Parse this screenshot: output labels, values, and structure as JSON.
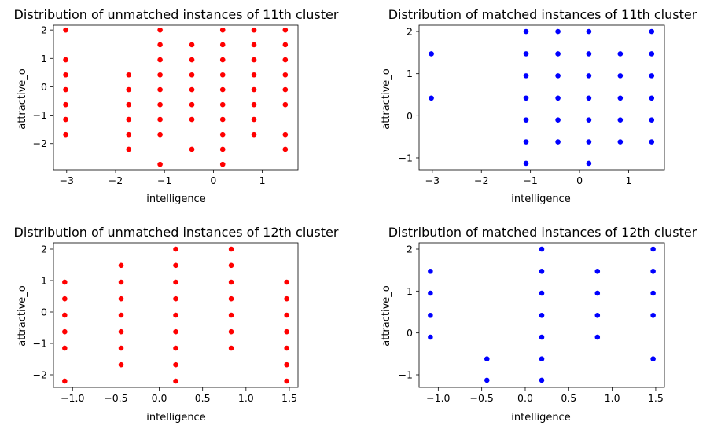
{
  "chart_data": [
    {
      "type": "scatter",
      "title": "Distribution of unmatched instances of 11th cluster",
      "xlabel": "intelligence",
      "ylabel": "attractive_o",
      "xlim": [
        -3.27,
        1.73
      ],
      "ylim": [
        -2.92,
        2.17
      ],
      "xticks": [
        -3,
        -2,
        -1,
        0,
        1
      ],
      "yticks": [
        -2,
        -1,
        0,
        1,
        2
      ],
      "xtick_labels": [
        "−3",
        "−2",
        "−1",
        "0",
        "1"
      ],
      "ytick_labels": [
        "−2",
        "−1",
        "0",
        "1",
        "2"
      ],
      "color": "#ff0000",
      "points": [
        {
          "x": -3.02,
          "y": 2.0
        },
        {
          "x": -3.02,
          "y": 0.95
        },
        {
          "x": -3.02,
          "y": 0.42
        },
        {
          "x": -3.02,
          "y": -0.1
        },
        {
          "x": -3.02,
          "y": -0.63
        },
        {
          "x": -3.02,
          "y": -1.15
        },
        {
          "x": -3.02,
          "y": -1.68
        },
        {
          "x": -1.73,
          "y": 0.42
        },
        {
          "x": -1.73,
          "y": -0.1
        },
        {
          "x": -1.73,
          "y": -0.63
        },
        {
          "x": -1.73,
          "y": -1.15
        },
        {
          "x": -1.73,
          "y": -1.68
        },
        {
          "x": -1.73,
          "y": -2.2
        },
        {
          "x": -1.09,
          "y": 2.0
        },
        {
          "x": -1.09,
          "y": 1.48
        },
        {
          "x": -1.09,
          "y": 0.95
        },
        {
          "x": -1.09,
          "y": 0.42
        },
        {
          "x": -1.09,
          "y": -0.1
        },
        {
          "x": -1.09,
          "y": -0.63
        },
        {
          "x": -1.09,
          "y": -1.15
        },
        {
          "x": -1.09,
          "y": -1.68
        },
        {
          "x": -1.09,
          "y": -2.73
        },
        {
          "x": -0.44,
          "y": 1.48
        },
        {
          "x": -0.44,
          "y": 0.95
        },
        {
          "x": -0.44,
          "y": 0.42
        },
        {
          "x": -0.44,
          "y": -0.1
        },
        {
          "x": -0.44,
          "y": -0.63
        },
        {
          "x": -0.44,
          "y": -1.15
        },
        {
          "x": -0.44,
          "y": -2.2
        },
        {
          "x": 0.19,
          "y": 2.0
        },
        {
          "x": 0.19,
          "y": 1.48
        },
        {
          "x": 0.19,
          "y": 0.95
        },
        {
          "x": 0.19,
          "y": 0.42
        },
        {
          "x": 0.19,
          "y": -0.1
        },
        {
          "x": 0.19,
          "y": -0.63
        },
        {
          "x": 0.19,
          "y": -1.15
        },
        {
          "x": 0.19,
          "y": -1.68
        },
        {
          "x": 0.19,
          "y": -2.2
        },
        {
          "x": 0.19,
          "y": -2.73
        },
        {
          "x": 0.83,
          "y": 2.0
        },
        {
          "x": 0.83,
          "y": 1.48
        },
        {
          "x": 0.83,
          "y": 0.95
        },
        {
          "x": 0.83,
          "y": 0.42
        },
        {
          "x": 0.83,
          "y": -0.1
        },
        {
          "x": 0.83,
          "y": -0.63
        },
        {
          "x": 0.83,
          "y": -1.15
        },
        {
          "x": 0.83,
          "y": -1.68
        },
        {
          "x": 1.47,
          "y": 2.0
        },
        {
          "x": 1.47,
          "y": 1.48
        },
        {
          "x": 1.47,
          "y": 0.95
        },
        {
          "x": 1.47,
          "y": 0.42
        },
        {
          "x": 1.47,
          "y": -0.1
        },
        {
          "x": 1.47,
          "y": -0.63
        },
        {
          "x": 1.47,
          "y": -1.68
        },
        {
          "x": 1.47,
          "y": -2.2
        }
      ]
    },
    {
      "type": "scatter",
      "title": "Distribution of matched instances of 11th cluster",
      "xlabel": "intelligence",
      "ylabel": "attractive_o",
      "xlim": [
        -3.27,
        1.73
      ],
      "ylim": [
        -1.28,
        2.15
      ],
      "xticks": [
        -3,
        -2,
        -1,
        0,
        1
      ],
      "yticks": [
        -1,
        0,
        1,
        2
      ],
      "xtick_labels": [
        "−3",
        "−2",
        "−1",
        "0",
        "1"
      ],
      "ytick_labels": [
        "−1",
        "0",
        "1",
        "2"
      ],
      "color": "#0000ff",
      "points": [
        {
          "x": -3.02,
          "y": 1.47
        },
        {
          "x": -3.02,
          "y": 0.42
        },
        {
          "x": -1.09,
          "y": 2.0
        },
        {
          "x": -1.09,
          "y": 1.47
        },
        {
          "x": -1.09,
          "y": 0.95
        },
        {
          "x": -1.09,
          "y": 0.42
        },
        {
          "x": -1.09,
          "y": -0.1
        },
        {
          "x": -1.09,
          "y": -0.62
        },
        {
          "x": -1.09,
          "y": -1.13
        },
        {
          "x": -0.44,
          "y": 2.0
        },
        {
          "x": -0.44,
          "y": 1.47
        },
        {
          "x": -0.44,
          "y": 0.95
        },
        {
          "x": -0.44,
          "y": 0.42
        },
        {
          "x": -0.44,
          "y": -0.1
        },
        {
          "x": -0.44,
          "y": -0.62
        },
        {
          "x": 0.19,
          "y": 2.0
        },
        {
          "x": 0.19,
          "y": 1.47
        },
        {
          "x": 0.19,
          "y": 0.95
        },
        {
          "x": 0.19,
          "y": 0.42
        },
        {
          "x": 0.19,
          "y": -0.1
        },
        {
          "x": 0.19,
          "y": -0.62
        },
        {
          "x": 0.19,
          "y": -1.13
        },
        {
          "x": 0.83,
          "y": 1.47
        },
        {
          "x": 0.83,
          "y": 0.95
        },
        {
          "x": 0.83,
          "y": 0.42
        },
        {
          "x": 0.83,
          "y": -0.1
        },
        {
          "x": 0.83,
          "y": -0.62
        },
        {
          "x": 1.47,
          "y": 2.0
        },
        {
          "x": 1.47,
          "y": 1.47
        },
        {
          "x": 1.47,
          "y": 0.95
        },
        {
          "x": 1.47,
          "y": 0.42
        },
        {
          "x": 1.47,
          "y": -0.1
        },
        {
          "x": 1.47,
          "y": -0.62
        }
      ]
    },
    {
      "type": "scatter",
      "title": "Distribution of unmatched instances of 12th cluster",
      "xlabel": "intelligence",
      "ylabel": "attractive_o",
      "xlim": [
        -1.22,
        1.6
      ],
      "ylim": [
        -2.4,
        2.2
      ],
      "xticks": [
        -1.0,
        -0.5,
        0.0,
        0.5,
        1.0,
        1.5
      ],
      "yticks": [
        -2,
        -1,
        0,
        1,
        2
      ],
      "xtick_labels": [
        "−1.0",
        "−0.5",
        "0.0",
        "0.5",
        "1.0",
        "1.5"
      ],
      "ytick_labels": [
        "−2",
        "−1",
        "0",
        "1",
        "2"
      ],
      "color": "#ff0000",
      "points": [
        {
          "x": -1.09,
          "y": 0.95
        },
        {
          "x": -1.09,
          "y": 0.42
        },
        {
          "x": -1.09,
          "y": -0.1
        },
        {
          "x": -1.09,
          "y": -0.63
        },
        {
          "x": -1.09,
          "y": -1.15
        },
        {
          "x": -1.09,
          "y": -2.2
        },
        {
          "x": -0.44,
          "y": 1.48
        },
        {
          "x": -0.44,
          "y": 0.95
        },
        {
          "x": -0.44,
          "y": 0.42
        },
        {
          "x": -0.44,
          "y": -0.1
        },
        {
          "x": -0.44,
          "y": -0.63
        },
        {
          "x": -0.44,
          "y": -1.15
        },
        {
          "x": -0.44,
          "y": -1.68
        },
        {
          "x": 0.19,
          "y": 2.0
        },
        {
          "x": 0.19,
          "y": 1.48
        },
        {
          "x": 0.19,
          "y": 0.95
        },
        {
          "x": 0.19,
          "y": 0.42
        },
        {
          "x": 0.19,
          "y": -0.1
        },
        {
          "x": 0.19,
          "y": -0.63
        },
        {
          "x": 0.19,
          "y": -1.15
        },
        {
          "x": 0.19,
          "y": -1.68
        },
        {
          "x": 0.19,
          "y": -2.2
        },
        {
          "x": 0.83,
          "y": 2.0
        },
        {
          "x": 0.83,
          "y": 1.48
        },
        {
          "x": 0.83,
          "y": 0.95
        },
        {
          "x": 0.83,
          "y": 0.42
        },
        {
          "x": 0.83,
          "y": -0.1
        },
        {
          "x": 0.83,
          "y": -0.63
        },
        {
          "x": 0.83,
          "y": -1.15
        },
        {
          "x": 1.47,
          "y": 0.95
        },
        {
          "x": 1.47,
          "y": 0.42
        },
        {
          "x": 1.47,
          "y": -0.1
        },
        {
          "x": 1.47,
          "y": -0.63
        },
        {
          "x": 1.47,
          "y": -1.15
        },
        {
          "x": 1.47,
          "y": -1.68
        },
        {
          "x": 1.47,
          "y": -2.2
        }
      ]
    },
    {
      "type": "scatter",
      "title": "Distribution of matched instances of 12th cluster",
      "xlabel": "intelligence",
      "ylabel": "attractive_o",
      "xlim": [
        -1.22,
        1.6
      ],
      "ylim": [
        -1.3,
        2.15
      ],
      "xticks": [
        -1.0,
        -0.5,
        0.0,
        0.5,
        1.0,
        1.5
      ],
      "yticks": [
        -1,
        0,
        1,
        2
      ],
      "xtick_labels": [
        "−1.0",
        "−0.5",
        "0.0",
        "0.5",
        "1.0",
        "1.5"
      ],
      "ytick_labels": [
        "−1",
        "0",
        "1",
        "2"
      ],
      "color": "#0000ff",
      "points": [
        {
          "x": -1.09,
          "y": 1.47
        },
        {
          "x": -1.09,
          "y": 0.95
        },
        {
          "x": -1.09,
          "y": 0.42
        },
        {
          "x": -1.09,
          "y": -0.1
        },
        {
          "x": -0.44,
          "y": -0.62
        },
        {
          "x": -0.44,
          "y": -1.13
        },
        {
          "x": 0.19,
          "y": 2.0
        },
        {
          "x": 0.19,
          "y": 1.47
        },
        {
          "x": 0.19,
          "y": 0.95
        },
        {
          "x": 0.19,
          "y": 0.42
        },
        {
          "x": 0.19,
          "y": -0.1
        },
        {
          "x": 0.19,
          "y": -0.62
        },
        {
          "x": 0.19,
          "y": -1.13
        },
        {
          "x": 0.83,
          "y": 1.47
        },
        {
          "x": 0.83,
          "y": 0.95
        },
        {
          "x": 0.83,
          "y": 0.42
        },
        {
          "x": 0.83,
          "y": -0.1
        },
        {
          "x": 1.47,
          "y": 2.0
        },
        {
          "x": 1.47,
          "y": 1.47
        },
        {
          "x": 1.47,
          "y": 0.95
        },
        {
          "x": 1.47,
          "y": 0.42
        },
        {
          "x": 1.47,
          "y": -0.62
        }
      ]
    }
  ]
}
